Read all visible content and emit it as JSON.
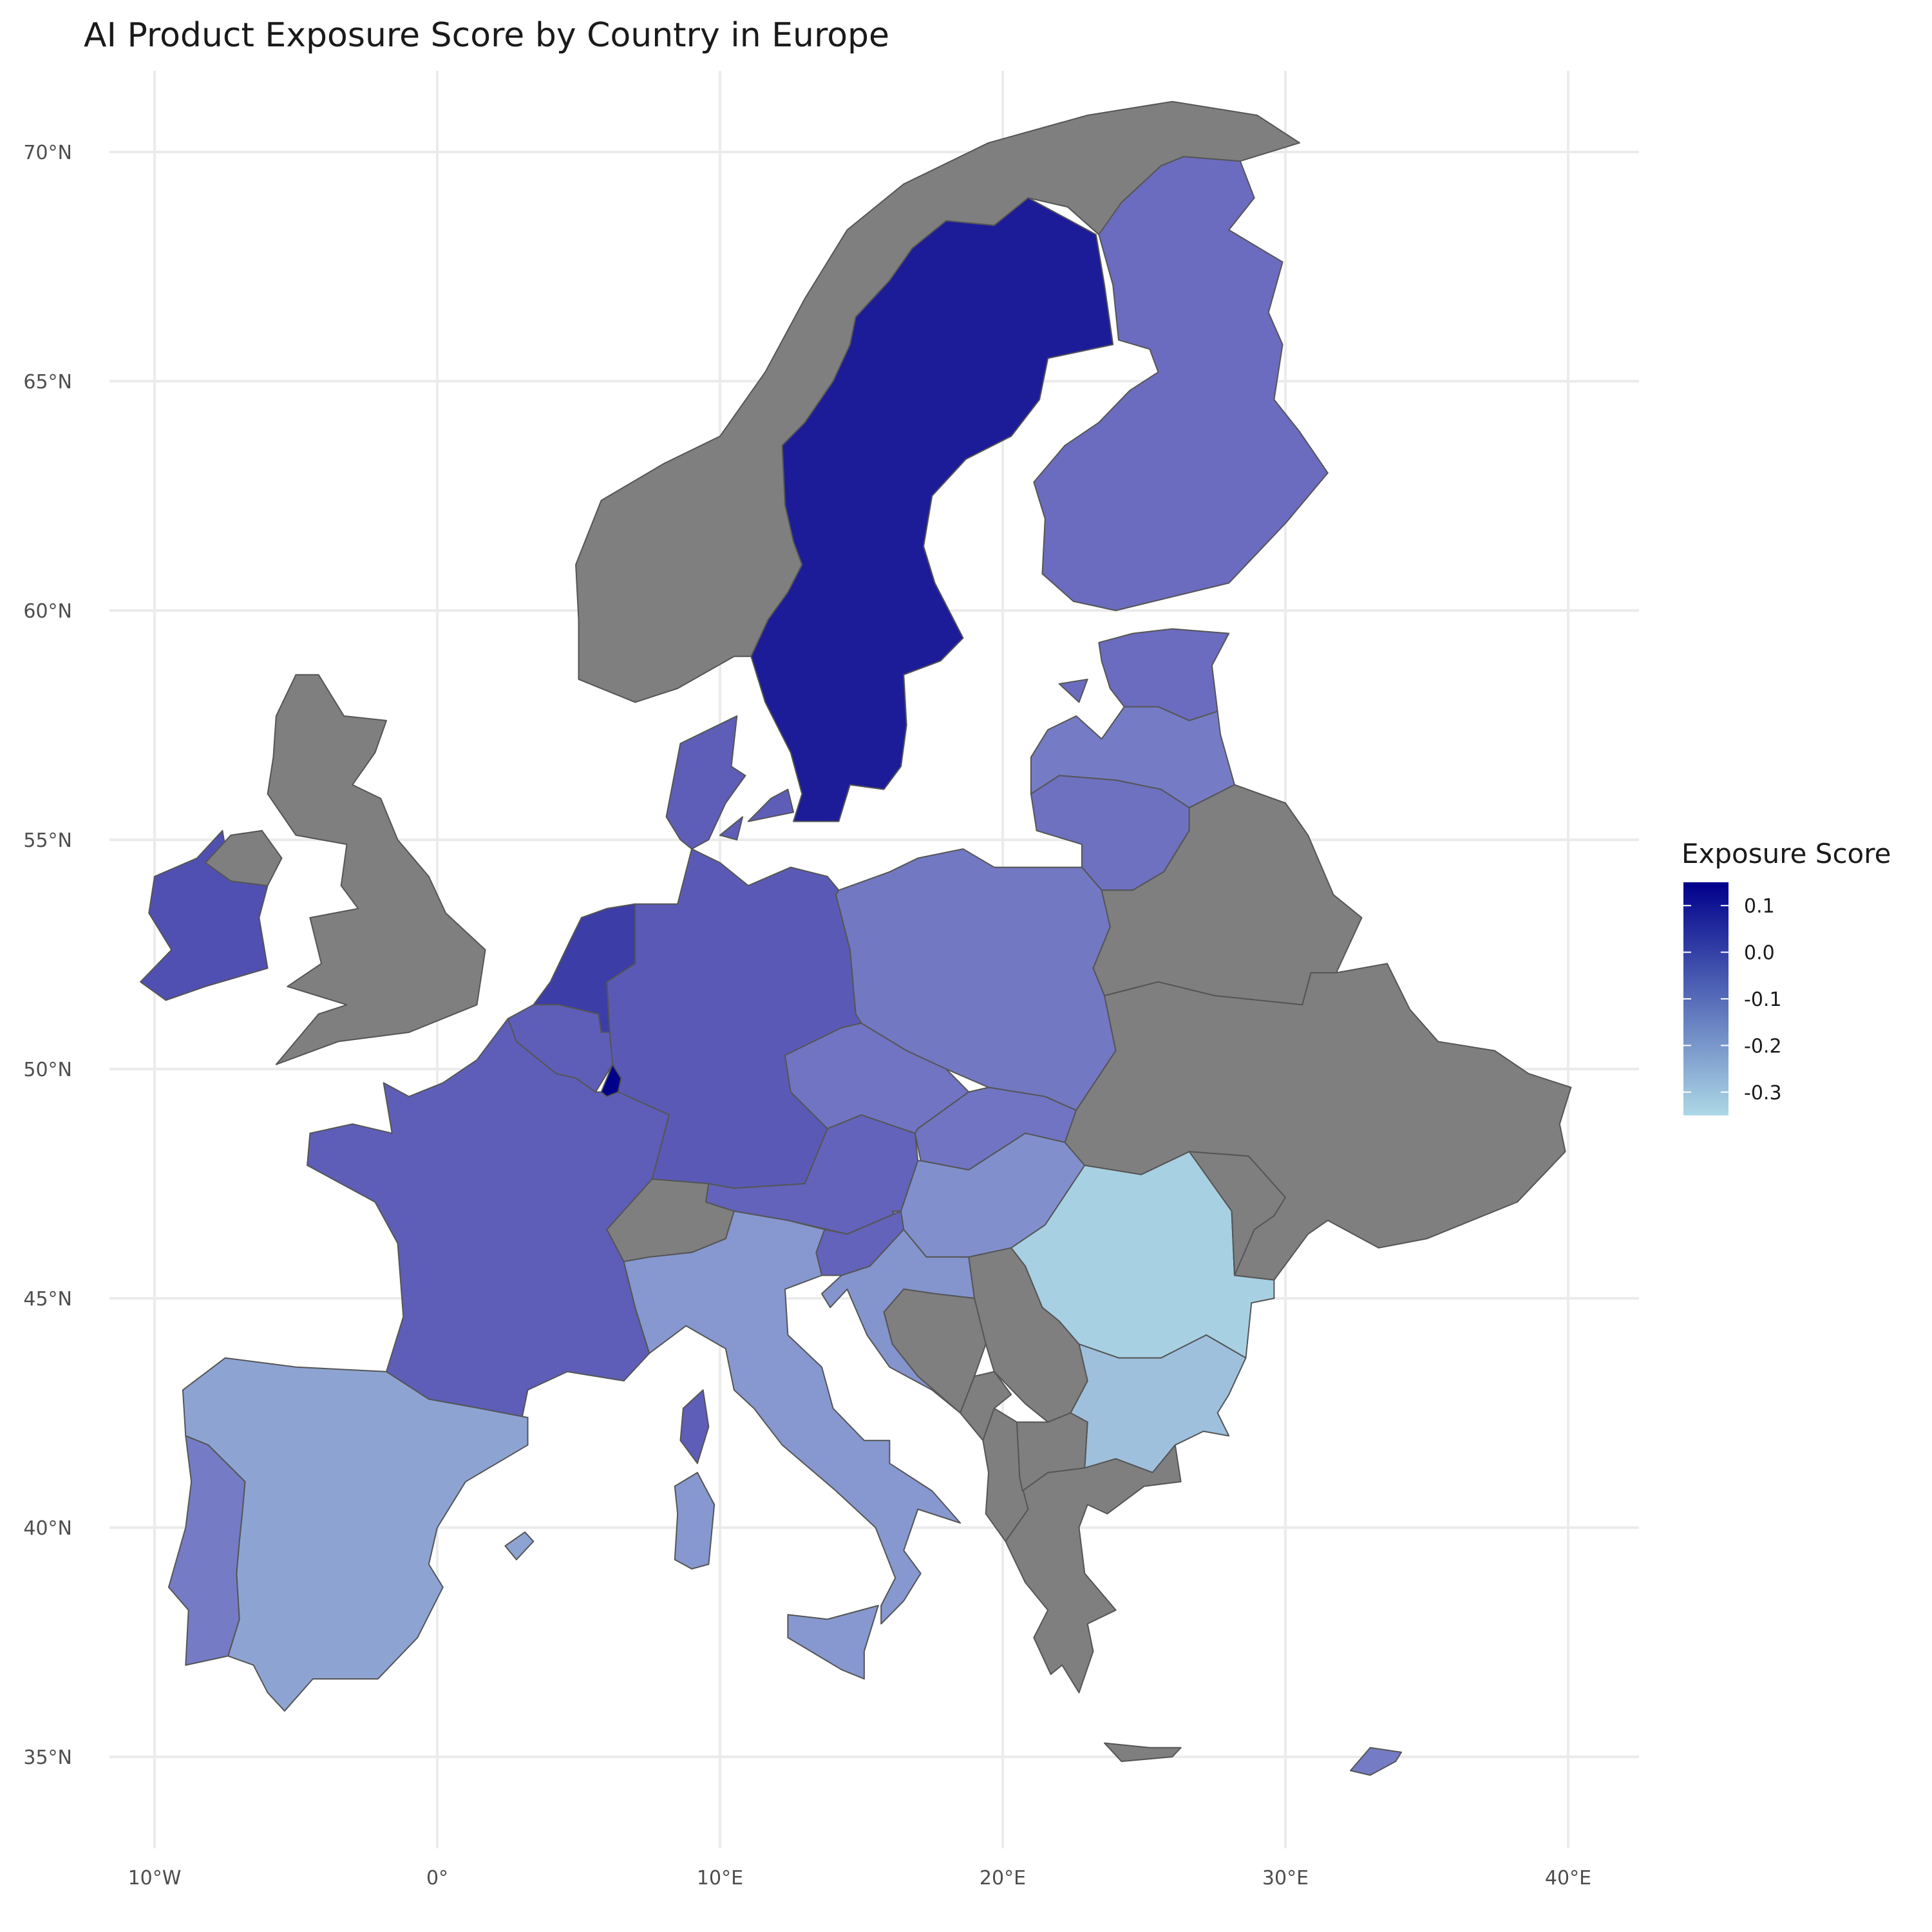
{
  "title": "AI Product Exposure Score by Country in Europe",
  "no_data_color": "#7f7f7f",
  "color_scale": {
    "low": "#add8e6",
    "high": "#00008b",
    "domain": [
      -0.35,
      0.15
    ]
  },
  "axes": {
    "lon_ticks": [
      {
        "value": -10,
        "label": "10°W"
      },
      {
        "value": 0,
        "label": "0°"
      },
      {
        "value": 10,
        "label": "10°E"
      },
      {
        "value": 20,
        "label": "20°E"
      },
      {
        "value": 30,
        "label": "30°E"
      },
      {
        "value": 40,
        "label": "40°E"
      }
    ],
    "lat_ticks": [
      {
        "value": 70,
        "label": "70°N"
      },
      {
        "value": 65,
        "label": "65°N"
      },
      {
        "value": 60,
        "label": "60°N"
      },
      {
        "value": 55,
        "label": "55°N"
      },
      {
        "value": 50,
        "label": "50°N"
      },
      {
        "value": 45,
        "label": "45°N"
      },
      {
        "value": 40,
        "label": "40°N"
      },
      {
        "value": 35,
        "label": "35°N"
      }
    ]
  },
  "legend": {
    "title": "Exposure Score",
    "labels": [
      {
        "value": 0.1,
        "label": "0.1"
      },
      {
        "value": 0.0,
        "label": "0.0"
      },
      {
        "value": -0.1,
        "label": "-0.1"
      },
      {
        "value": -0.2,
        "label": "-0.2"
      },
      {
        "value": -0.3,
        "label": "-0.3"
      }
    ]
  },
  "chart_data": {
    "type": "choropleth",
    "title": "AI Product Exposure Score by Country in Europe",
    "legend_title": "Exposure Score",
    "legend_position": "right",
    "grid": true,
    "lon_range": [
      -12.5,
      42.5
    ],
    "lat_range": [
      32.5,
      71.8
    ],
    "series": [
      {
        "country": "Luxembourg",
        "value": 0.15
      },
      {
        "country": "Sweden",
        "value": 0.09
      },
      {
        "country": "Netherlands",
        "value": 0.02
      },
      {
        "country": "Ireland",
        "value": -0.02
      },
      {
        "country": "Germany",
        "value": -0.04
      },
      {
        "country": "France",
        "value": -0.05
      },
      {
        "country": "Denmark",
        "value": -0.05
      },
      {
        "country": "Belgium",
        "value": -0.05
      },
      {
        "country": "Austria",
        "value": -0.06
      },
      {
        "country": "Slovenia",
        "value": -0.06
      },
      {
        "country": "Finland",
        "value": -0.08
      },
      {
        "country": "Estonia",
        "value": -0.08
      },
      {
        "country": "Lithuania",
        "value": -0.09
      },
      {
        "country": "Czechia",
        "value": -0.1
      },
      {
        "country": "Poland",
        "value": -0.11
      },
      {
        "country": "Latvia",
        "value": -0.12
      },
      {
        "country": "Slovakia",
        "value": -0.1
      },
      {
        "country": "Portugal",
        "value": -0.12
      },
      {
        "country": "Cyprus",
        "value": -0.12
      },
      {
        "country": "Hungary",
        "value": -0.17
      },
      {
        "country": "Croatia",
        "value": -0.18
      },
      {
        "country": "Italy",
        "value": -0.19
      },
      {
        "country": "Spain",
        "value": -0.22
      },
      {
        "country": "Bulgaria",
        "value": -0.29
      },
      {
        "country": "Romania",
        "value": -0.33
      },
      {
        "country": "United Kingdom",
        "value": null
      },
      {
        "country": "Switzerland",
        "value": null
      },
      {
        "country": "Norway",
        "value": null
      },
      {
        "country": "Belarus",
        "value": null
      },
      {
        "country": "Ukraine",
        "value": null
      },
      {
        "country": "Moldova",
        "value": null
      },
      {
        "country": "Greece",
        "value": null
      },
      {
        "country": "Serbia",
        "value": null
      },
      {
        "country": "Bosnia and Herzegovina",
        "value": null
      },
      {
        "country": "Montenegro",
        "value": null
      },
      {
        "country": "Albania",
        "value": null
      },
      {
        "country": "North Macedonia",
        "value": null
      },
      {
        "country": "Kosovo",
        "value": null
      }
    ]
  }
}
